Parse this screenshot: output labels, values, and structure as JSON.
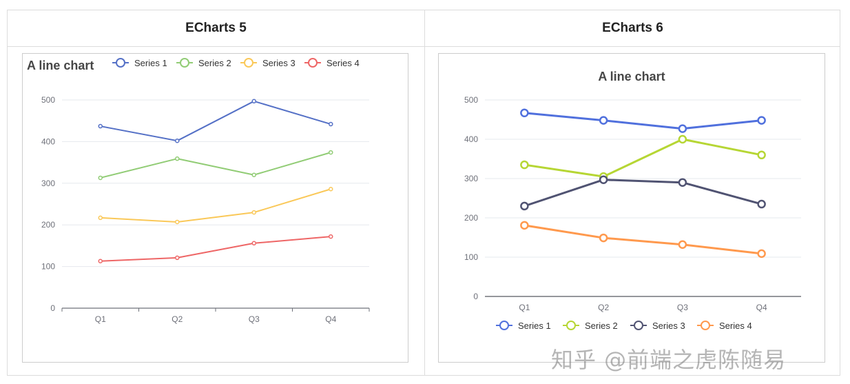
{
  "table": {
    "headers": [
      "ECharts 5",
      "ECharts 6"
    ]
  },
  "watermark": "知乎 @前端之虎陈随易",
  "chart_data": [
    {
      "type": "line",
      "title": "A line chart",
      "categories": [
        "Q1",
        "Q2",
        "Q3",
        "Q4"
      ],
      "ylim": [
        0,
        500
      ],
      "yticks": [
        "0",
        "100",
        "200",
        "300",
        "400",
        "500"
      ],
      "grid": true,
      "legend": "top",
      "series": [
        {
          "name": "Series 1",
          "color": "#5470c6",
          "values": [
            437,
            402,
            497,
            442
          ]
        },
        {
          "name": "Series 2",
          "color": "#91cc75",
          "values": [
            313,
            359,
            320,
            374
          ]
        },
        {
          "name": "Series 3",
          "color": "#fac858",
          "values": [
            217,
            207,
            230,
            286
          ]
        },
        {
          "name": "Series 4",
          "color": "#ee6666",
          "values": [
            113,
            121,
            156,
            172
          ]
        }
      ]
    },
    {
      "type": "line",
      "title": "A line chart",
      "categories": [
        "Q1",
        "Q2",
        "Q3",
        "Q4"
      ],
      "ylim": [
        0,
        500
      ],
      "yticks": [
        "0",
        "100",
        "200",
        "300",
        "400",
        "500"
      ],
      "grid": true,
      "legend": "bottom",
      "series": [
        {
          "name": "Series 1",
          "color": "#5070dd",
          "values": [
            467,
            448,
            427,
            448
          ]
        },
        {
          "name": "Series 2",
          "color": "#b6d634",
          "values": [
            335,
            305,
            400,
            360
          ]
        },
        {
          "name": "Series 3",
          "color": "#505372",
          "values": [
            230,
            297,
            290,
            235
          ]
        },
        {
          "name": "Series 4",
          "color": "#ff994d",
          "values": [
            181,
            149,
            132,
            109
          ]
        }
      ]
    }
  ]
}
